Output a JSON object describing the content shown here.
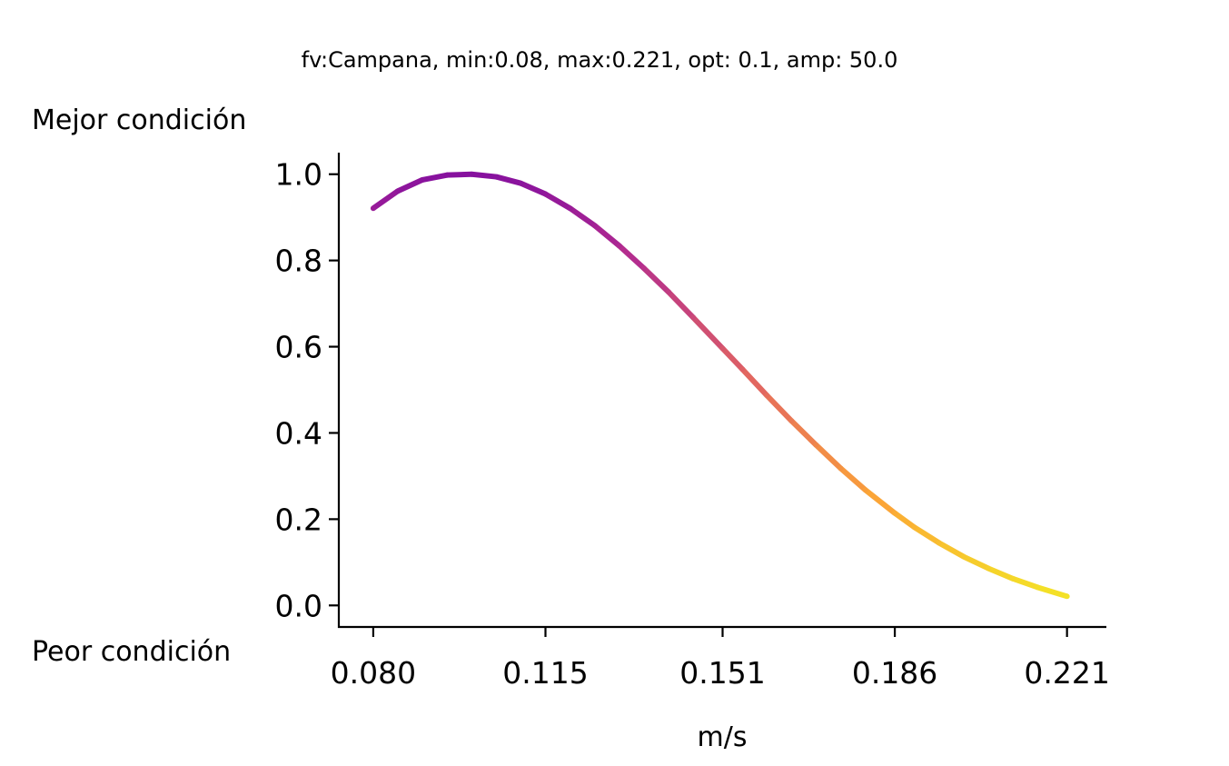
{
  "chart_data": {
    "type": "line",
    "title": "fv:Campana, min:0.08, max:0.221, opt: 0.1, amp: 50.0",
    "xlabel": "m/s",
    "ylabel": "",
    "top_label": "Mejor condición",
    "bottom_label": "Peor condición",
    "xlim": [
      0.073,
      0.229
    ],
    "ylim": [
      -0.05,
      1.05
    ],
    "x_ticks": [
      0.08,
      0.115,
      0.151,
      0.186,
      0.221
    ],
    "x_tick_labels": [
      "0.080",
      "0.115",
      "0.151",
      "0.186",
      "0.221"
    ],
    "y_ticks": [
      0.0,
      0.2,
      0.4,
      0.6,
      0.8,
      1.0
    ],
    "y_tick_labels": [
      "0.0",
      "0.2",
      "0.4",
      "0.6",
      "0.8",
      "1.0"
    ],
    "grid": false,
    "colormap": [
      "#0d0887",
      "#6a00a8",
      "#b12a90",
      "#e16462",
      "#fca636",
      "#f0f921"
    ],
    "series": [
      {
        "x": [
          0.08,
          0.085,
          0.09,
          0.095,
          0.1,
          0.105,
          0.11,
          0.115,
          0.12,
          0.125,
          0.13,
          0.135,
          0.14,
          0.145,
          0.151,
          0.155,
          0.16,
          0.165,
          0.17,
          0.175,
          0.18,
          0.186,
          0.19,
          0.195,
          0.2,
          0.205,
          0.21,
          0.215,
          0.221
        ],
        "y": [
          0.921,
          0.961,
          0.987,
          0.998,
          1.0,
          0.994,
          0.979,
          0.954,
          0.921,
          0.881,
          0.834,
          0.782,
          0.727,
          0.668,
          0.596,
          0.548,
          0.487,
          0.428,
          0.372,
          0.318,
          0.268,
          0.214,
          0.181,
          0.145,
          0.113,
          0.086,
          0.062,
          0.042,
          0.021
        ]
      }
    ]
  }
}
